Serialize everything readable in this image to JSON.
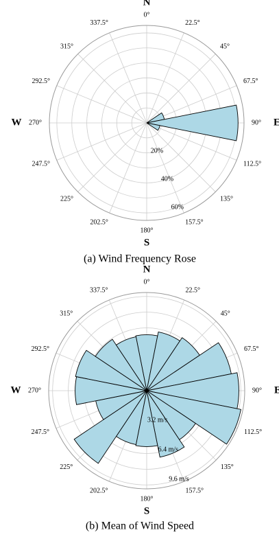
{
  "chart_data": [
    {
      "type": "polar-bar",
      "title": "(a) Wind Frequency Rose",
      "categories": [
        "0°",
        "22.5°",
        "45°",
        "67.5°",
        "90°",
        "112.5°",
        "135°",
        "157.5°",
        "180°",
        "202.5°",
        "225°",
        "247.5°",
        "270°",
        "292.5°",
        "315°",
        "337.5°"
      ],
      "cardinals": [
        "N",
        "E",
        "S",
        "W"
      ],
      "values": [
        0,
        0,
        0,
        12,
        61,
        9,
        0,
        0,
        0,
        0,
        0,
        0,
        0,
        0,
        0,
        0
      ],
      "color": "#add8e6",
      "ylim": [
        0,
        65
      ],
      "yticks": [
        {
          "value": 20,
          "label": "20%"
        },
        {
          "value": 40,
          "label": "40%"
        },
        {
          "value": 60,
          "label": "60%"
        }
      ],
      "yticks_minor": [
        10,
        30,
        50
      ]
    },
    {
      "type": "polar-bar",
      "title": "(b) Mean of Wind Speed",
      "categories": [
        "0°",
        "22.5°",
        "45°",
        "67.5°",
        "90°",
        "112.5°",
        "135°",
        "157.5°",
        "180°",
        "202.5°",
        "225°",
        "247.5°",
        "270°",
        "292.5°",
        "315°",
        "337.5°"
      ],
      "cardinals": [
        "N",
        "E",
        "S",
        "W"
      ],
      "values": [
        5.7,
        6.1,
        6.5,
        8.8,
        9.4,
        9.8,
        6.0,
        6.9,
        5.7,
        5.6,
        8.9,
        5.3,
        7.3,
        7.4,
        6.3,
        5.6
      ],
      "color": "#add8e6",
      "ylim": [
        0,
        10
      ],
      "yticks": [
        {
          "value": 3.2,
          "label": "3.2 m/s"
        },
        {
          "value": 6.4,
          "label": "6.4 m/s"
        },
        {
          "value": 9.6,
          "label": "9.6 m/s"
        }
      ],
      "yticks_minor": [
        1.6,
        4.8,
        8.0
      ]
    }
  ]
}
